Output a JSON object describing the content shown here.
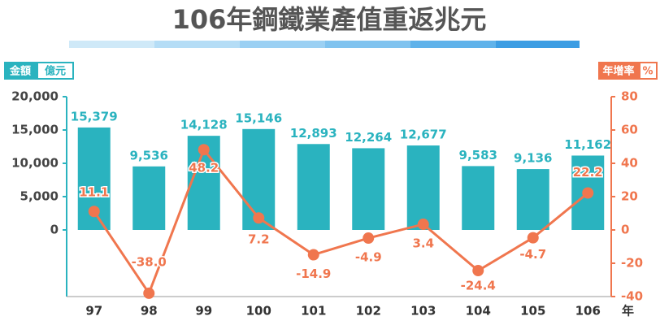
{
  "chart_data": {
    "type": "bar",
    "title": "106年鋼鐵業產值重返兆元",
    "y_unit": "億元",
    "y2_unit": "%",
    "x_unit": "年",
    "categories": [
      "97",
      "98",
      "99",
      "100",
      "101",
      "102",
      "103",
      "104",
      "105",
      "106"
    ],
    "series": [
      {
        "name": "金額",
        "type": "bar",
        "color": "#2ab3bf",
        "values": [
          15379,
          9536,
          14128,
          15146,
          12893,
          12264,
          12677,
          9583,
          9136,
          11162
        ],
        "value_labels": [
          "15,379",
          "9,536",
          "14,128",
          "15,146",
          "12,893",
          "12,264",
          "12,677",
          "9,583",
          "9,136",
          "11,162"
        ]
      },
      {
        "name": "年增率",
        "type": "line",
        "axis": "y2",
        "color": "#f0764e",
        "values": [
          11.1,
          -38.0,
          48.2,
          7.2,
          -14.9,
          -4.9,
          3.4,
          -24.4,
          -4.7,
          22.2
        ],
        "value_labels": [
          "11.1",
          "-38.0",
          "48.2",
          "7.2",
          "-14.9",
          "-4.9",
          "3.4",
          "-24.4",
          "-4.7",
          "22.2"
        ]
      }
    ],
    "ylim": [
      -10000,
      20000
    ],
    "yticks": [
      {
        "value": 20000,
        "label": "20,000"
      },
      {
        "value": 15000,
        "label": "15,000"
      },
      {
        "value": 10000,
        "label": "10,000"
      },
      {
        "value": 5000,
        "label": "5,000"
      },
      0
    ],
    "y2lim": [
      -40,
      80
    ],
    "y2ticks": [
      80,
      60,
      40,
      20,
      0,
      -20,
      -40
    ]
  }
}
